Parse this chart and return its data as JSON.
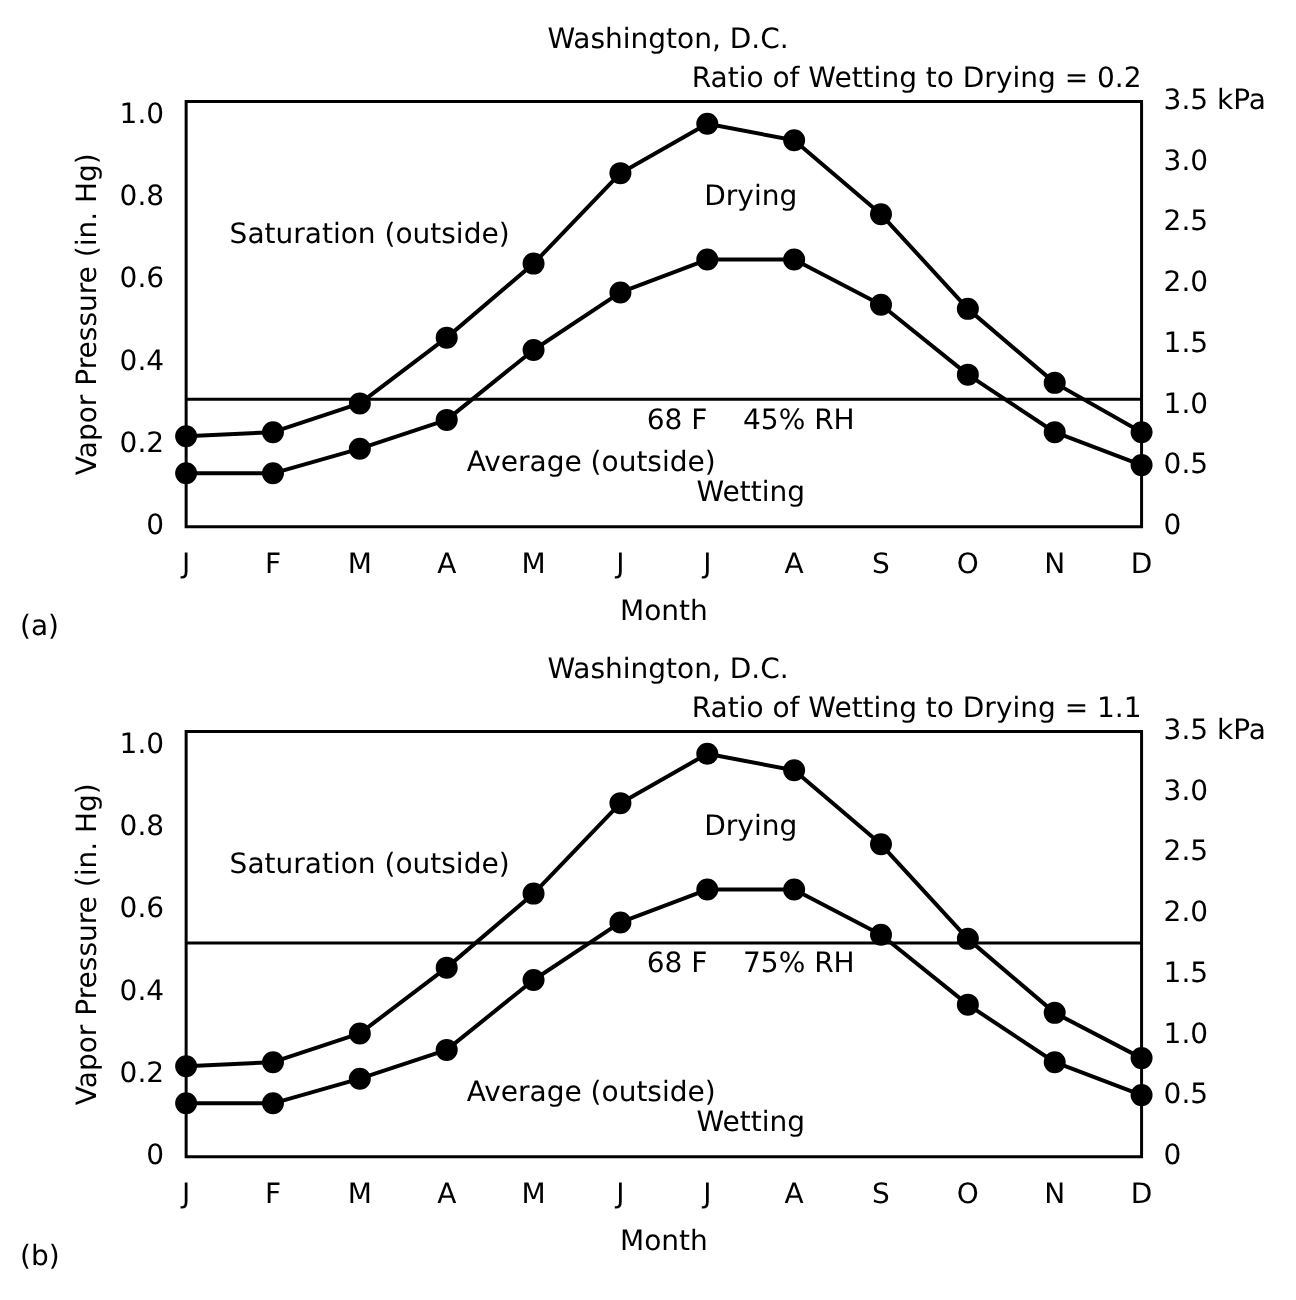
{
  "chart_data": [
    {
      "type": "line",
      "title": "Washington, D.C.",
      "xlabel": "Month",
      "ylabel": "Vapor Pressure (in. Hg)",
      "categories": [
        "J",
        "F",
        "M",
        "A",
        "M",
        "J",
        "J",
        "A",
        "S",
        "O",
        "N",
        "D"
      ],
      "series": [
        {
          "name": "Saturation (outside)",
          "color": "#000000",
          "values": [
            0.22,
            0.23,
            0.3,
            0.46,
            0.64,
            0.86,
            0.98,
            0.94,
            0.76,
            0.53,
            0.35,
            0.23
          ]
        },
        {
          "name": "Average (outside)",
          "color": "#000000",
          "values": [
            0.13,
            0.13,
            0.19,
            0.26,
            0.43,
            0.57,
            0.65,
            0.65,
            0.54,
            0.37,
            0.23,
            0.15
          ]
        }
      ],
      "ylim": [
        0,
        1.034
      ],
      "yticks": [
        0,
        0.2,
        0.4,
        0.6,
        0.8,
        {
          "value": 1,
          "label": "1.0"
        }
      ],
      "y2lim": [
        0,
        3.5
      ],
      "y2ticks": [
        0,
        0.5,
        {
          "value": 1,
          "label": "1.0"
        },
        1.5,
        {
          "value": 2,
          "label": "2.0"
        },
        2.5,
        {
          "value": 3,
          "label": "3.0"
        },
        {
          "value": 3.5,
          "label": "3.5 kPa"
        }
      ],
      "ref_lines": [
        {
          "axis": "y",
          "value": 0.31,
          "label": "68 F    45% RH",
          "color": "#000000"
        }
      ],
      "annotations": [
        "Ratio of Wetting to Drying = 0.2",
        "Drying",
        "Wetting",
        "(a)"
      ],
      "marker": "circle",
      "line_style": "solid",
      "grid": false,
      "legend": false
    },
    {
      "type": "line",
      "title": "Washington, D.C.",
      "xlabel": "Month",
      "ylabel": "Vapor Pressure (in. Hg)",
      "categories": [
        "J",
        "F",
        "M",
        "A",
        "M",
        "J",
        "J",
        "A",
        "S",
        "O",
        "N",
        "D"
      ],
      "series": [
        {
          "name": "Saturation (outside)",
          "color": "#000000",
          "values": [
            0.22,
            0.23,
            0.3,
            0.46,
            0.64,
            0.86,
            0.98,
            0.94,
            0.76,
            0.53,
            0.35,
            0.24
          ]
        },
        {
          "name": "Average (outside)",
          "color": "#000000",
          "values": [
            0.13,
            0.13,
            0.19,
            0.26,
            0.43,
            0.57,
            0.65,
            0.65,
            0.54,
            0.37,
            0.23,
            0.15
          ]
        }
      ],
      "ylim": [
        0,
        1.034
      ],
      "yticks": [
        0,
        0.2,
        0.4,
        0.6,
        0.8,
        {
          "value": 1,
          "label": "1.0"
        }
      ],
      "y2lim": [
        0,
        3.5
      ],
      "y2ticks": [
        0,
        0.5,
        {
          "value": 1,
          "label": "1.0"
        },
        1.5,
        {
          "value": 2,
          "label": "2.0"
        },
        2.5,
        {
          "value": 3,
          "label": "3.0"
        },
        {
          "value": 3.5,
          "label": "3.5 kPa"
        }
      ],
      "ref_lines": [
        {
          "axis": "y",
          "value": 0.52,
          "label": "68 F    75% RH",
          "color": "#000000"
        }
      ],
      "annotations": [
        "Ratio of Wetting to Drying = 1.1",
        "Drying",
        "Wetting",
        "(b)"
      ],
      "marker": "circle",
      "line_style": "solid",
      "grid": false,
      "legend": false
    }
  ]
}
